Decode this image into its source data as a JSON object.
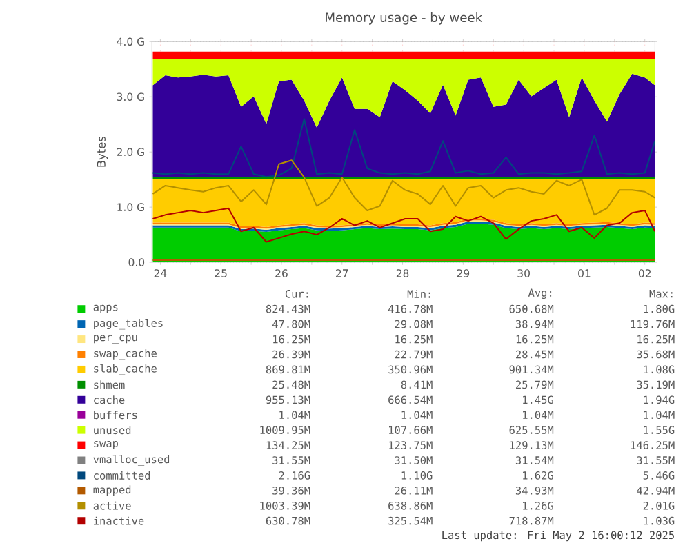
{
  "chart_data": {
    "type": "area",
    "stacked": true,
    "title": "Memory usage - by week",
    "ylabel": "Bytes",
    "grid": true,
    "legend": "bottom",
    "xlim": [
      "2025-04-24T08:40",
      "2025-05-02T16:00"
    ],
    "ylim": [
      0,
      4.0
    ],
    "xticks": [
      {
        "value": "2025-04-24T12:00",
        "label": "24"
      },
      {
        "value": "2025-04-25",
        "label": null
      },
      {
        "value": "2025-04-25T12:00",
        "label": "25"
      },
      {
        "value": "2025-04-26",
        "label": null
      },
      {
        "value": "2025-04-26T12:00",
        "label": "26"
      },
      {
        "value": "2025-04-27",
        "label": null
      },
      {
        "value": "2025-04-27T12:00",
        "label": "27"
      },
      {
        "value": "2025-04-28",
        "label": null
      },
      {
        "value": "2025-04-28T12:00",
        "label": "28"
      },
      {
        "value": "2025-04-29",
        "label": null
      },
      {
        "value": "2025-04-29T12:00",
        "label": "29"
      },
      {
        "value": "2025-04-30",
        "label": null
      },
      {
        "value": "2025-04-30T12:00",
        "label": "30"
      },
      {
        "value": "2025-05-01",
        "label": null
      },
      {
        "value": "2025-05-01T12:00",
        "label": "01"
      },
      {
        "value": "2025-05-02",
        "label": null
      },
      {
        "value": "2025-05-02T12:00",
        "label": "02"
      }
    ],
    "yticks": [
      {
        "value": 0,
        "label": "0.0"
      },
      {
        "value": 1,
        "label": "1.0 G"
      },
      {
        "value": 2,
        "label": "2.0 G"
      },
      {
        "value": 3,
        "label": "3.0 G"
      },
      {
        "value": 4,
        "label": "4.0 G"
      }
    ],
    "x": [
      "2025-04-24T09:00",
      "2025-04-24T14:00",
      "2025-04-24T19:00",
      "2025-04-25T00:00",
      "2025-04-25T05:00",
      "2025-04-25T10:00",
      "2025-04-25T15:00",
      "2025-04-25T20:00",
      "2025-04-26T01:00",
      "2025-04-26T06:00",
      "2025-04-26T11:00",
      "2025-04-26T16:00",
      "2025-04-26T21:00",
      "2025-04-27T02:00",
      "2025-04-27T07:00",
      "2025-04-27T12:00",
      "2025-04-27T17:00",
      "2025-04-27T22:00",
      "2025-04-28T03:00",
      "2025-04-28T08:00",
      "2025-04-28T13:00",
      "2025-04-28T18:00",
      "2025-04-28T23:00",
      "2025-04-29T04:00",
      "2025-04-29T09:00",
      "2025-04-29T14:00",
      "2025-04-29T19:00",
      "2025-04-30T00:00",
      "2025-04-30T05:00",
      "2025-04-30T10:00",
      "2025-04-30T15:00",
      "2025-04-30T20:00",
      "2025-05-01T01:00",
      "2025-05-01T06:00",
      "2025-05-01T11:00",
      "2025-05-01T16:00",
      "2025-05-01T21:00",
      "2025-05-02T02:00",
      "2025-05-02T07:00",
      "2025-05-02T12:00",
      "2025-05-02T16:00"
    ],
    "series": [
      {
        "name": "apps",
        "color": "#00cc00",
        "values": [
          0.63,
          0.63,
          0.63,
          0.63,
          0.63,
          0.63,
          0.63,
          0.56,
          0.57,
          0.55,
          0.58,
          0.6,
          0.62,
          0.58,
          0.57,
          0.58,
          0.6,
          0.62,
          0.6,
          0.61,
          0.6,
          0.6,
          0.58,
          0.62,
          0.64,
          0.7,
          0.7,
          0.68,
          0.62,
          0.6,
          0.62,
          0.6,
          0.62,
          0.6,
          0.62,
          0.63,
          0.64,
          0.62,
          0.6,
          0.63,
          0.62
        ]
      },
      {
        "name": "page_tables",
        "color": "#0066b3",
        "values": [
          0.04,
          0.04,
          0.04,
          0.04,
          0.04,
          0.04,
          0.04,
          0.04,
          0.04,
          0.04,
          0.04,
          0.04,
          0.04,
          0.04,
          0.04,
          0.04,
          0.04,
          0.04,
          0.04,
          0.04,
          0.04,
          0.04,
          0.04,
          0.04,
          0.04,
          0.04,
          0.04,
          0.04,
          0.04,
          0.04,
          0.04,
          0.04,
          0.04,
          0.04,
          0.04,
          0.04,
          0.04,
          0.04,
          0.04,
          0.04,
          0.04
        ]
      },
      {
        "name": "per_cpu",
        "color": "#ffe680",
        "values": [
          0.02,
          0.02,
          0.02,
          0.02,
          0.02,
          0.02,
          0.02,
          0.02,
          0.02,
          0.02,
          0.02,
          0.02,
          0.02,
          0.02,
          0.02,
          0.02,
          0.02,
          0.02,
          0.02,
          0.02,
          0.02,
          0.02,
          0.02,
          0.02,
          0.02,
          0.02,
          0.02,
          0.02,
          0.02,
          0.02,
          0.02,
          0.02,
          0.02,
          0.02,
          0.02,
          0.02,
          0.02,
          0.02,
          0.02,
          0.02,
          0.02
        ]
      },
      {
        "name": "swap_cache",
        "color": "#ff8000",
        "values": [
          0.03,
          0.03,
          0.03,
          0.03,
          0.03,
          0.03,
          0.03,
          0.03,
          0.03,
          0.03,
          0.03,
          0.03,
          0.03,
          0.03,
          0.03,
          0.03,
          0.03,
          0.03,
          0.03,
          0.03,
          0.03,
          0.03,
          0.03,
          0.03,
          0.03,
          0.03,
          0.03,
          0.03,
          0.03,
          0.03,
          0.03,
          0.03,
          0.03,
          0.03,
          0.03,
          0.03,
          0.03,
          0.03,
          0.03,
          0.03,
          0.03
        ]
      },
      {
        "name": "slab_cache",
        "color": "#ffcc00",
        "values": [
          0.79,
          0.79,
          0.79,
          0.79,
          0.79,
          0.79,
          0.79,
          0.86,
          0.85,
          0.87,
          0.84,
          0.82,
          0.8,
          0.84,
          0.85,
          0.84,
          0.82,
          0.8,
          0.82,
          0.81,
          0.82,
          0.82,
          0.84,
          0.8,
          0.78,
          0.72,
          0.72,
          0.74,
          0.8,
          0.82,
          0.8,
          0.82,
          0.8,
          0.82,
          0.8,
          0.79,
          0.78,
          0.8,
          0.82,
          0.79,
          0.8
        ]
      },
      {
        "name": "shmem",
        "color": "#008f00",
        "values": [
          0.03,
          0.03,
          0.03,
          0.03,
          0.03,
          0.03,
          0.03,
          0.03,
          0.03,
          0.03,
          0.03,
          0.03,
          0.03,
          0.03,
          0.03,
          0.03,
          0.03,
          0.03,
          0.03,
          0.03,
          0.03,
          0.03,
          0.03,
          0.03,
          0.03,
          0.03,
          0.03,
          0.03,
          0.03,
          0.03,
          0.03,
          0.03,
          0.03,
          0.03,
          0.03,
          0.03,
          0.03,
          0.03,
          0.03,
          0.03,
          0.03
        ]
      },
      {
        "name": "cache",
        "color": "#330099",
        "values": [
          1.67,
          1.85,
          1.81,
          1.83,
          1.86,
          1.83,
          1.85,
          1.28,
          1.47,
          0.97,
          1.74,
          1.77,
          1.39,
          0.9,
          1.39,
          1.81,
          1.24,
          1.24,
          1.09,
          1.74,
          1.58,
          1.39,
          1.16,
          1.68,
          1.12,
          1.77,
          1.81,
          1.28,
          1.32,
          1.77,
          1.47,
          1.62,
          1.77,
          1.09,
          1.81,
          1.39,
          1.01,
          1.51,
          1.88,
          1.81,
          1.67
        ]
      },
      {
        "name": "buffers",
        "color": "#990099",
        "values": [
          null,
          null,
          null,
          null,
          null,
          null,
          null,
          null,
          null,
          null,
          null,
          null,
          null,
          null,
          null,
          null,
          null,
          null,
          null,
          null,
          null,
          null,
          null,
          null,
          null,
          null,
          null,
          null,
          null,
          null,
          null,
          null,
          null,
          null,
          null,
          null,
          null,
          null,
          null,
          null,
          null
        ]
      },
      {
        "name": "unused",
        "color": "#ccff00",
        "values": [
          0.48,
          0.3,
          0.34,
          0.32,
          0.29,
          0.32,
          0.3,
          0.87,
          0.68,
          1.18,
          0.41,
          0.38,
          0.76,
          1.25,
          0.76,
          0.34,
          0.91,
          0.91,
          1.06,
          0.41,
          0.57,
          0.76,
          0.99,
          0.47,
          1.03,
          0.38,
          0.34,
          0.87,
          0.83,
          0.38,
          0.68,
          0.53,
          0.38,
          1.06,
          0.34,
          0.76,
          1.14,
          0.64,
          0.27,
          0.34,
          0.48
        ]
      },
      {
        "name": "swap",
        "color": "#ff0000",
        "values": [
          0.13,
          0.13,
          0.13,
          0.13,
          0.13,
          0.13,
          0.13,
          0.13,
          0.13,
          0.13,
          0.13,
          0.13,
          0.13,
          0.13,
          0.13,
          0.13,
          0.13,
          0.13,
          0.13,
          0.13,
          0.13,
          0.13,
          0.13,
          0.13,
          0.13,
          0.13,
          0.13,
          0.13,
          0.13,
          0.13,
          0.13,
          0.13,
          0.13,
          0.13,
          0.13,
          0.13,
          0.13,
          0.13,
          0.13,
          0.13,
          0.13
        ]
      },
      {
        "name": "vmalloc_used",
        "type": "line",
        "color": "#808080",
        "values": [
          null,
          null,
          null,
          null,
          null,
          null,
          null,
          null,
          null,
          null,
          null,
          null,
          null,
          null,
          null,
          null,
          null,
          null,
          null,
          null,
          null,
          null,
          null,
          null,
          null,
          null,
          null,
          null,
          null,
          null,
          null,
          null,
          null,
          null,
          null,
          null,
          null,
          null,
          null,
          null,
          null
        ]
      },
      {
        "name": "committed",
        "type": "line",
        "color": "#00487d",
        "values": [
          1.62,
          1.6,
          1.62,
          1.6,
          1.62,
          1.6,
          1.6,
          2.1,
          1.6,
          1.55,
          1.58,
          1.7,
          2.6,
          1.6,
          1.62,
          1.6,
          2.4,
          1.7,
          1.62,
          1.6,
          1.62,
          1.6,
          1.65,
          2.2,
          1.62,
          1.66,
          1.6,
          1.62,
          1.9,
          1.6,
          1.62,
          1.62,
          1.6,
          1.62,
          1.65,
          2.3,
          1.6,
          1.62,
          1.6,
          1.62,
          2.2
        ]
      },
      {
        "name": "mapped",
        "type": "line",
        "color": "#b35a00",
        "values": [
          0.04,
          0.04,
          0.04,
          0.04,
          0.04,
          0.04,
          0.04,
          0.04,
          0.04,
          0.04,
          0.04,
          0.04,
          0.04,
          0.04,
          0.04,
          0.04,
          0.04,
          0.04,
          0.04,
          0.04,
          0.04,
          0.04,
          0.04,
          0.04,
          0.04,
          0.04,
          0.04,
          0.04,
          0.04,
          0.04,
          0.04,
          0.04,
          0.04,
          0.04,
          0.04,
          0.04,
          0.04,
          0.04,
          0.04,
          0.04,
          0.04
        ]
      },
      {
        "name": "active",
        "type": "line",
        "color": "#b38f00",
        "values": [
          1.24,
          1.39,
          1.35,
          1.31,
          1.28,
          1.35,
          1.39,
          1.1,
          1.31,
          1.05,
          1.78,
          1.85,
          1.54,
          1.02,
          1.17,
          1.54,
          1.17,
          0.94,
          1.02,
          1.48,
          1.31,
          1.24,
          1.05,
          1.39,
          1.02,
          1.35,
          1.39,
          1.17,
          1.31,
          1.35,
          1.28,
          1.24,
          1.48,
          1.39,
          1.5,
          0.86,
          0.98,
          1.31,
          1.31,
          1.28,
          1.17
        ]
      },
      {
        "name": "inactive",
        "type": "line",
        "color": "#b30000",
        "values": [
          0.79,
          0.86,
          0.9,
          0.94,
          0.9,
          0.94,
          0.98,
          0.56,
          0.63,
          0.37,
          0.44,
          0.51,
          0.56,
          0.5,
          0.63,
          0.79,
          0.67,
          0.75,
          0.63,
          0.71,
          0.79,
          0.79,
          0.56,
          0.6,
          0.83,
          0.75,
          0.83,
          0.71,
          0.42,
          0.6,
          0.75,
          0.79,
          0.86,
          0.56,
          0.63,
          0.44,
          0.67,
          0.71,
          0.9,
          0.94,
          0.56
        ]
      }
    ],
    "annotations": [
      "Cur:",
      "Min:",
      "Avg:",
      "Max:",
      "824.43M",
      "416.78M",
      "650.68M",
      "1.80G",
      "47.80M",
      "29.08M",
      "38.94M",
      "119.76M",
      "16.25M",
      "16.25M",
      "16.25M",
      "16.25M",
      "26.39M",
      "22.79M",
      "28.45M",
      "35.68M",
      "869.81M",
      "350.96M",
      "901.34M",
      "1.08G",
      "25.48M",
      "8.41M",
      "25.79M",
      "35.19M",
      "955.13M",
      "666.54M",
      "1.45G",
      "1.94G",
      "1.04M",
      "1.04M",
      "1.04M",
      "1.04M",
      "1009.95M",
      "107.66M",
      "625.55M",
      "1.55G",
      "134.25M",
      "123.75M",
      "129.13M",
      "146.25M",
      "31.55M",
      "31.50M",
      "31.54M",
      "31.55M",
      "2.16G",
      "1.10G",
      "1.62G",
      "5.46G",
      "39.36M",
      "26.11M",
      "34.93M",
      "42.94M",
      "1003.39M",
      "638.86M",
      "1.26G",
      "2.01G",
      "630.78M",
      "325.54M",
      "718.87M",
      "1.03G",
      "Last update: Fri May  2 16:00:12 2025"
    ]
  }
}
